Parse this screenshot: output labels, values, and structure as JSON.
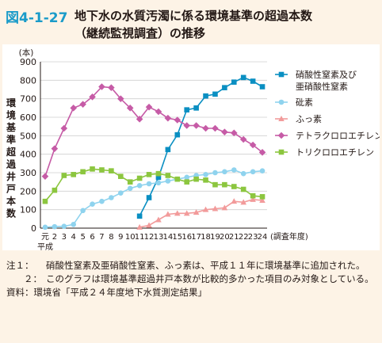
{
  "header": {
    "figure_number": "図4-1-27",
    "title_line1": "地下水の水質汚濁に係る環境基準の超過本数",
    "title_line2": "（継続監視調査）の推移"
  },
  "chart_data": {
    "type": "line",
    "unit_label": "(本)",
    "ylabel": "環境基準超過井戸本数",
    "xlabel": "(調査年度)",
    "xaxis_prefix": "平成",
    "categories": [
      "元",
      "2",
      "3",
      "4",
      "5",
      "6",
      "7",
      "8",
      "9",
      "10",
      "11",
      "12",
      "13",
      "14",
      "15",
      "16",
      "17",
      "18",
      "19",
      "20",
      "21",
      "22",
      "23",
      "24"
    ],
    "ylim": [
      0,
      900
    ],
    "yticks": [
      0,
      100,
      200,
      300,
      400,
      500,
      600,
      700,
      800,
      900
    ],
    "grid": true,
    "legend_position": "right",
    "series": [
      {
        "name": "硝酸性窒素及び亜硝酸性窒素",
        "color": "#0a8fc2",
        "marker": "square",
        "values": [
          null,
          null,
          null,
          null,
          null,
          null,
          null,
          null,
          null,
          null,
          65,
          165,
          275,
          425,
          505,
          640,
          650,
          715,
          725,
          760,
          790,
          815,
          795,
          765
        ]
      },
      {
        "name": "砒素",
        "color": "#8fd3ee",
        "marker": "circle",
        "values": [
          5,
          8,
          10,
          20,
          95,
          130,
          145,
          165,
          190,
          215,
          230,
          240,
          245,
          255,
          265,
          275,
          285,
          290,
          300,
          305,
          315,
          295,
          305,
          310
        ]
      },
      {
        "name": "ふっ素",
        "color": "#f29b9b",
        "marker": "triangle",
        "values": [
          null,
          null,
          null,
          null,
          null,
          null,
          null,
          null,
          null,
          null,
          5,
          15,
          45,
          75,
          80,
          80,
          85,
          100,
          105,
          110,
          145,
          140,
          155,
          150
        ]
      },
      {
        "name": "テトラクロロエチレン",
        "color": "#c65ba6",
        "marker": "diamond",
        "values": [
          280,
          430,
          540,
          650,
          670,
          710,
          765,
          760,
          700,
          650,
          590,
          655,
          630,
          595,
          585,
          555,
          555,
          540,
          540,
          520,
          515,
          480,
          450,
          410
        ]
      },
      {
        "name": "トリクロロエチレン",
        "color": "#8cc63f",
        "marker": "square",
        "values": [
          145,
          205,
          285,
          290,
          305,
          320,
          315,
          310,
          280,
          250,
          270,
          290,
          295,
          285,
          265,
          250,
          265,
          260,
          235,
          235,
          225,
          210,
          175,
          170
        ]
      }
    ]
  },
  "notes": [
    {
      "label": "注１：",
      "text": "硝酸性窒素及亜硝酸性窒素、ふっ素は、平成１１年に環境基準に追加された。"
    },
    {
      "label": "２：",
      "text": "このグラフは環境基準超過井戸本数が比較的多かった項目のみ対象としている。"
    }
  ],
  "source": "資料：環境省「平成２４年度地下水質測定結果」"
}
